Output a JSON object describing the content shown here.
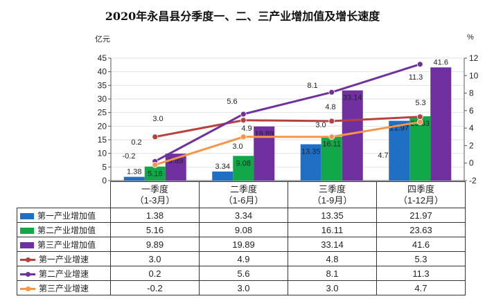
{
  "title": "2020年永昌县分季度一、二、三产业增加值及增长速度",
  "chart_data": {
    "type": "bar+line",
    "title": "2020年永昌县分季度一、二、三产业增加值及增长速度",
    "ylabel": "亿元",
    "y2label": "%",
    "ylim": [
      0,
      45
    ],
    "yticks": [
      0,
      5,
      10,
      15,
      20,
      25,
      30,
      35,
      40,
      45
    ],
    "y2lim": [
      -2,
      12
    ],
    "y2ticks": [
      -2,
      0,
      2,
      4,
      6,
      8,
      10,
      12
    ],
    "grid": true,
    "legend": "data-table",
    "categories": [
      {
        "line1": "一季度",
        "line2": "（1-3月）"
      },
      {
        "line1": "二季度",
        "line2": "（1-6月）"
      },
      {
        "line1": "三季度",
        "line2": "（1-9月）"
      },
      {
        "line1": "四季度",
        "line2": "（1-12月）"
      }
    ],
    "series": [
      {
        "name": "第一产业增加值",
        "kind": "bar",
        "axis": "left",
        "color": "#1f6fc5",
        "values": [
          1.38,
          3.34,
          13.35,
          21.97
        ],
        "labels": [
          "1.38",
          "3.34",
          "13.35",
          "21.97"
        ]
      },
      {
        "name": "第二产业增加值",
        "kind": "bar",
        "axis": "left",
        "color": "#12a84a",
        "values": [
          5.16,
          9.08,
          16.11,
          23.63
        ],
        "labels": [
          "5.16",
          "9.08",
          "16.11",
          "23.63"
        ]
      },
      {
        "name": "第三产业增加值",
        "kind": "bar",
        "axis": "left",
        "color": "#7030a0",
        "values": [
          9.89,
          19.89,
          33.14,
          41.6
        ],
        "labels": [
          "9.89",
          "19.89",
          "33.14",
          "41.6"
        ]
      },
      {
        "name": "第一产业增速",
        "kind": "line",
        "axis": "right",
        "color": "#b8413e",
        "values": [
          3.0,
          4.9,
          4.8,
          5.3
        ],
        "labels": [
          "3.0",
          "4.9",
          "4.8",
          "5.3"
        ]
      },
      {
        "name": "第二产业增速",
        "kind": "line",
        "axis": "right",
        "color": "#7030a0",
        "values": [
          0.2,
          5.6,
          8.1,
          11.3
        ],
        "labels": [
          "0.2",
          "5.6",
          "8.1",
          "11.3"
        ]
      },
      {
        "name": "第三产业增速",
        "kind": "line",
        "axis": "right",
        "color": "#f79646",
        "values": [
          -0.2,
          3.0,
          3.0,
          4.7
        ],
        "labels": [
          "-0.2",
          "3.0",
          "3.0",
          "4.7"
        ]
      }
    ]
  }
}
